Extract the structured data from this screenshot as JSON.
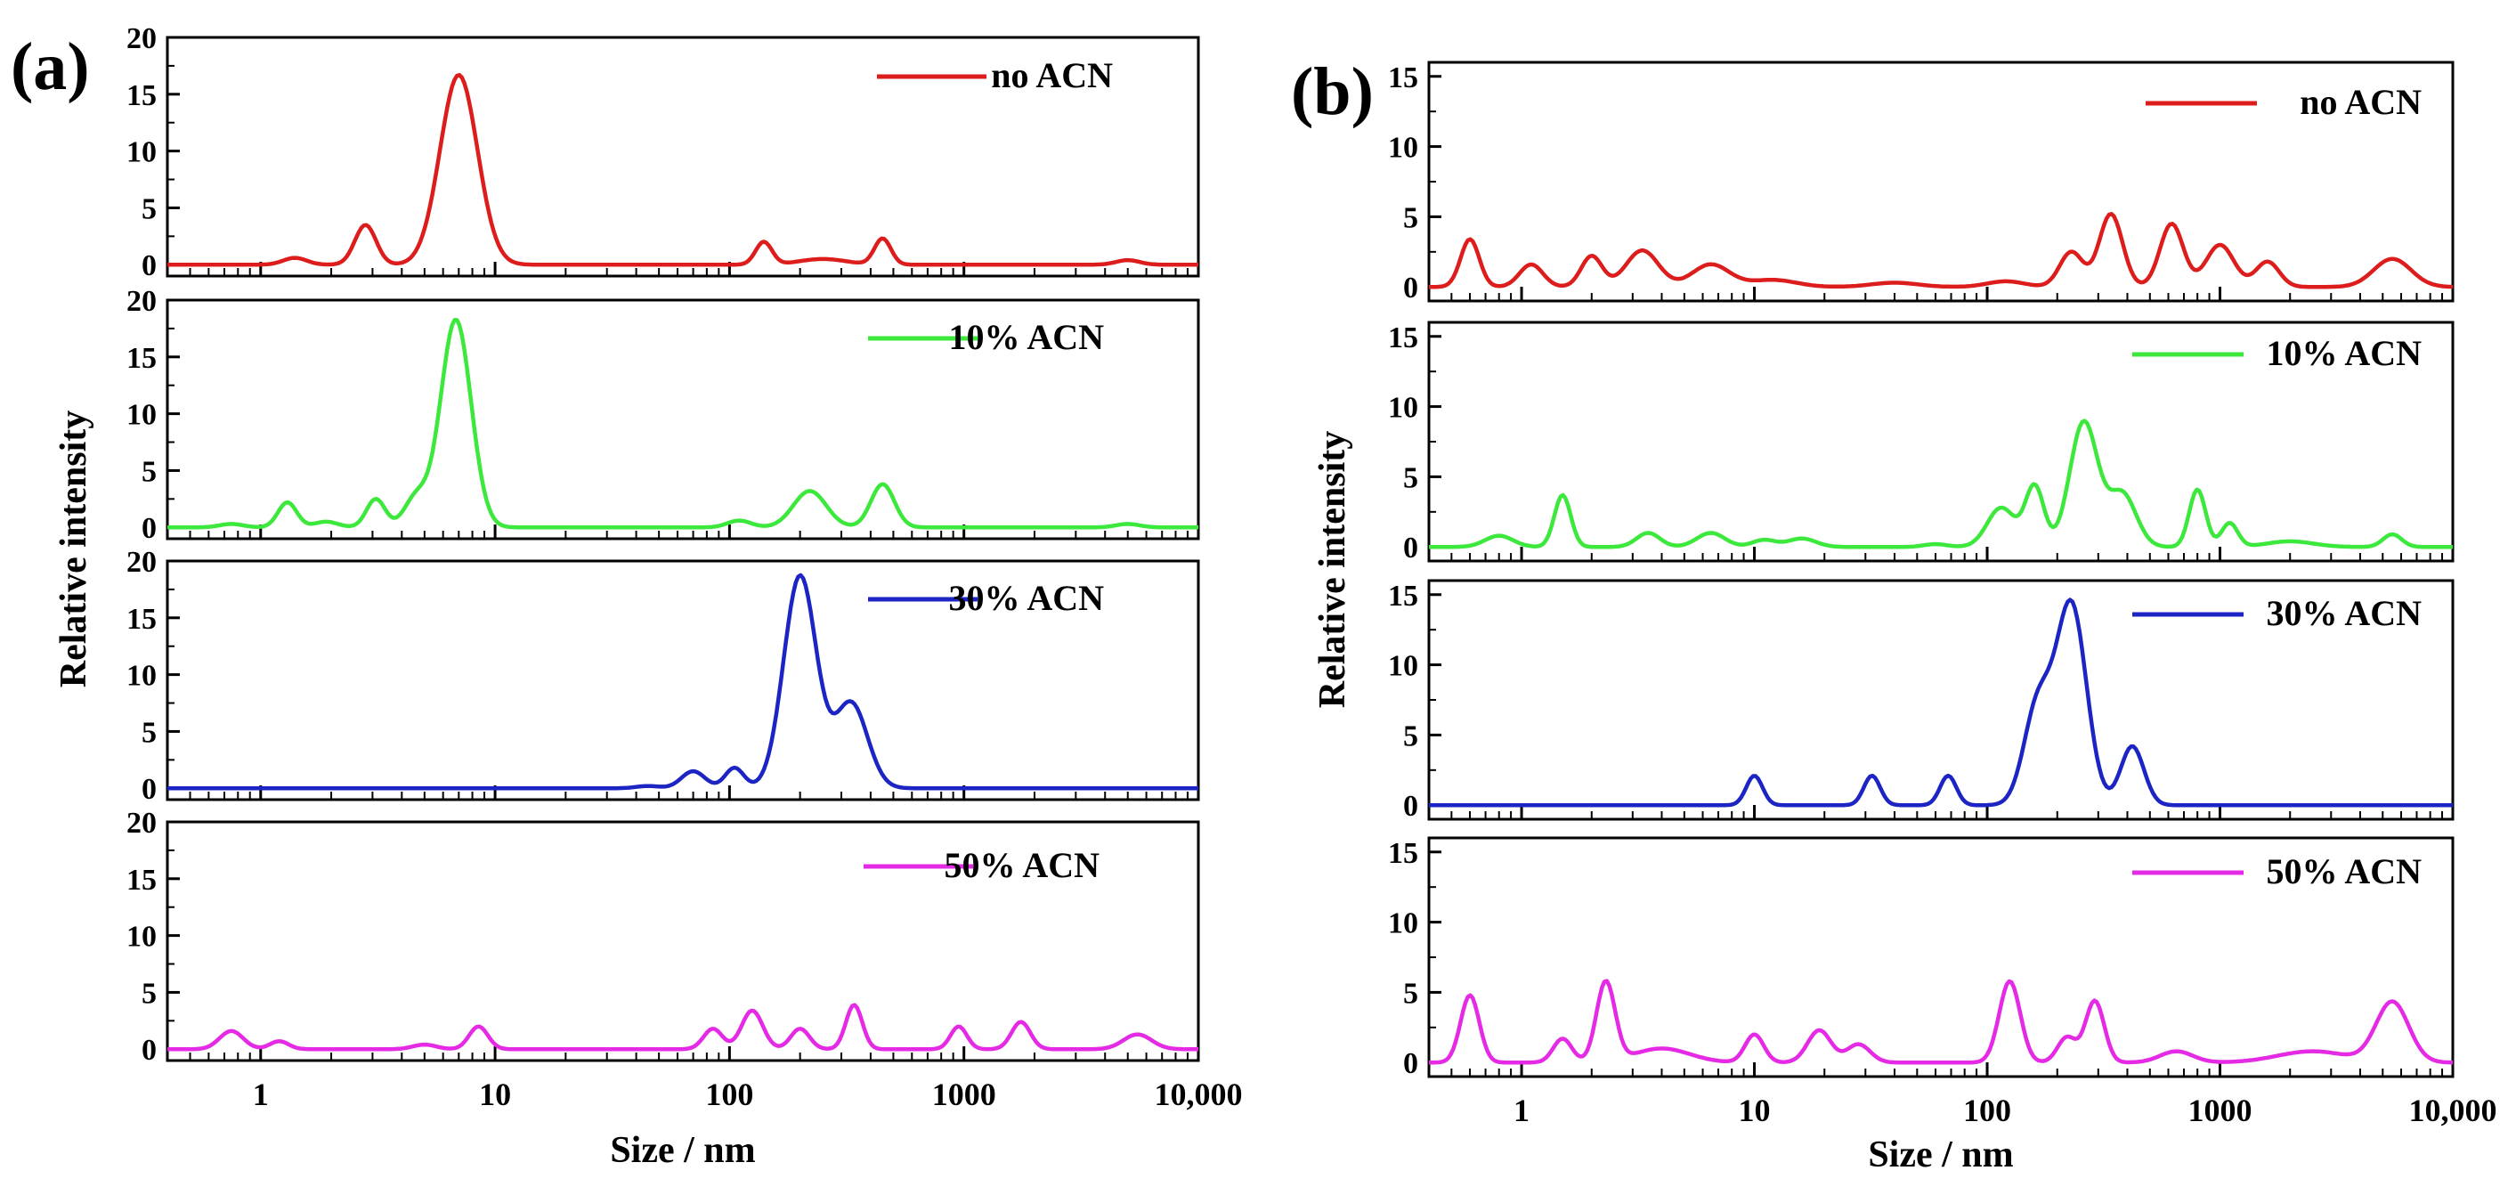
{
  "chart_data": [
    {
      "panel_label": "(a)",
      "type": "line",
      "x_scale": "log",
      "xlim": [
        0.4,
        10000
      ],
      "xlabel": "Size / nm",
      "ylabel": "Relative intensity",
      "x_ticks": [
        1,
        10,
        100,
        1000,
        10000
      ],
      "x_tick_labels": [
        "1",
        "10",
        "100",
        "1000",
        "10,000"
      ],
      "subplots": [
        {
          "legend": "no ACN",
          "color": "#dd1c1c",
          "ylim": [
            -1,
            20
          ],
          "y_ticks": [
            0,
            5,
            10,
            15,
            20
          ],
          "y_tick_labels": [
            "0",
            "5",
            "10",
            "15",
            "20"
          ],
          "peaks": [
            [
              1.4,
              0.6,
              0.05
            ],
            [
              2.8,
              3.5,
              0.045
            ],
            [
              7.0,
              16.7,
              0.08
            ],
            [
              140,
              2.0,
              0.035
            ],
            [
              250,
              0.5,
              0.1
            ],
            [
              450,
              2.3,
              0.035
            ],
            [
              5000,
              0.4,
              0.05
            ]
          ]
        },
        {
          "legend": "10% ACN",
          "color": "#3de83d",
          "ylim": [
            -1,
            20
          ],
          "y_ticks": [
            0,
            5,
            10,
            15,
            20
          ],
          "y_tick_labels": [
            "0",
            "5",
            "10",
            "15",
            "20"
          ],
          "peaks": [
            [
              0.75,
              0.3,
              0.05
            ],
            [
              1.3,
              2.2,
              0.04
            ],
            [
              1.9,
              0.5,
              0.05
            ],
            [
              3.1,
              2.5,
              0.04
            ],
            [
              4.6,
              2.6,
              0.05
            ],
            [
              6.8,
              18.3,
              0.065
            ],
            [
              110,
              0.6,
              0.05
            ],
            [
              220,
              3.2,
              0.07
            ],
            [
              450,
              3.8,
              0.05
            ],
            [
              5000,
              0.3,
              0.05
            ]
          ]
        },
        {
          "legend": "30% ACN",
          "color": "#1c24c4",
          "ylim": [
            -1,
            20
          ],
          "y_ticks": [
            0,
            5,
            10,
            15,
            20
          ],
          "y_tick_labels": [
            "0",
            "5",
            "10",
            "15",
            "20"
          ],
          "peaks": [
            [
              45,
              0.2,
              0.05
            ],
            [
              70,
              1.5,
              0.05
            ],
            [
              105,
              1.8,
              0.04
            ],
            [
              200,
              18.7,
              0.07
            ],
            [
              330,
              7.5,
              0.07
            ]
          ]
        },
        {
          "legend": "50%  ACN",
          "color": "#e52ae5",
          "ylim": [
            -1,
            20
          ],
          "y_ticks": [
            0,
            5,
            10,
            15,
            20
          ],
          "y_tick_labels": [
            "0",
            "5",
            "10",
            "15",
            "20"
          ],
          "peaks": [
            [
              0.75,
              1.6,
              0.05
            ],
            [
              1.2,
              0.7,
              0.04
            ],
            [
              5,
              0.4,
              0.05
            ],
            [
              8.5,
              2.0,
              0.04
            ],
            [
              85,
              1.8,
              0.04
            ],
            [
              125,
              3.4,
              0.045
            ],
            [
              200,
              1.8,
              0.04
            ],
            [
              340,
              3.9,
              0.035
            ],
            [
              950,
              2.0,
              0.035
            ],
            [
              1750,
              2.4,
              0.04
            ],
            [
              5500,
              1.3,
              0.06
            ]
          ]
        }
      ]
    },
    {
      "panel_label": "(b)",
      "type": "line",
      "x_scale": "log",
      "xlim": [
        0.4,
        10000
      ],
      "xlabel": "Size / nm",
      "ylabel": "Relative intensity",
      "x_ticks": [
        1,
        10,
        100,
        1000,
        10000
      ],
      "x_tick_labels": [
        "1",
        "10",
        "100",
        "1000",
        "10,000"
      ],
      "subplots": [
        {
          "legend": "no ACN",
          "color": "#dd1c1c",
          "ylim": [
            -1,
            16
          ],
          "y_ticks": [
            0,
            5,
            10,
            15
          ],
          "y_tick_labels": [
            "0",
            "5",
            "10",
            "15"
          ],
          "peaks": [
            [
              0.6,
              3.4,
              0.04
            ],
            [
              1.1,
              1.6,
              0.05
            ],
            [
              2.0,
              2.2,
              0.045
            ],
            [
              3.3,
              2.6,
              0.07
            ],
            [
              6.5,
              1.6,
              0.08
            ],
            [
              12,
              0.5,
              0.1
            ],
            [
              40,
              0.3,
              0.1
            ],
            [
              120,
              0.4,
              0.08
            ],
            [
              230,
              2.5,
              0.05
            ],
            [
              340,
              5.2,
              0.05
            ],
            [
              620,
              4.5,
              0.05
            ],
            [
              1000,
              3.0,
              0.06
            ],
            [
              1600,
              1.8,
              0.05
            ],
            [
              5500,
              2.0,
              0.08
            ]
          ]
        },
        {
          "legend": "10% ACN",
          "color": "#3de83d",
          "ylim": [
            -1,
            16
          ],
          "y_ticks": [
            0,
            5,
            10,
            15
          ],
          "y_tick_labels": [
            "0",
            "5",
            "10",
            "15"
          ],
          "peaks": [
            [
              0.8,
              0.8,
              0.06
            ],
            [
              1.5,
              3.7,
              0.035
            ],
            [
              3.5,
              1.0,
              0.05
            ],
            [
              6.5,
              1.0,
              0.06
            ],
            [
              11,
              0.5,
              0.05
            ],
            [
              16,
              0.6,
              0.06
            ],
            [
              60,
              0.2,
              0.05
            ],
            [
              115,
              2.8,
              0.06
            ],
            [
              160,
              4.3,
              0.04
            ],
            [
              260,
              8.9,
              0.06
            ],
            [
              380,
              3.8,
              0.06
            ],
            [
              800,
              4.1,
              0.035
            ],
            [
              1100,
              1.7,
              0.035
            ],
            [
              2000,
              0.4,
              0.1
            ],
            [
              5500,
              0.9,
              0.04
            ]
          ]
        },
        {
          "legend": "30% ACN",
          "color": "#1c24c4",
          "ylim": [
            -1,
            16
          ],
          "y_ticks": [
            0,
            5,
            10,
            15
          ],
          "y_tick_labels": [
            "0",
            "5",
            "10",
            "15"
          ],
          "peaks": [
            [
              10,
              2.1,
              0.035
            ],
            [
              32,
              2.1,
              0.035
            ],
            [
              68,
              2.1,
              0.035
            ],
            [
              165,
              7.0,
              0.06
            ],
            [
              230,
              14.2,
              0.065
            ],
            [
              420,
              4.2,
              0.05
            ]
          ]
        },
        {
          "legend": "50% ACN",
          "color": "#e52ae5",
          "ylim": [
            -1,
            16
          ],
          "y_ticks": [
            0,
            5,
            10,
            15
          ],
          "y_tick_labels": [
            "0",
            "5",
            "10",
            "15"
          ],
          "peaks": [
            [
              0.6,
              4.8,
              0.04
            ],
            [
              1.5,
              1.7,
              0.04
            ],
            [
              2.3,
              5.7,
              0.04
            ],
            [
              4.0,
              1.0,
              0.12
            ],
            [
              10,
              2.0,
              0.04
            ],
            [
              19,
              2.3,
              0.05
            ],
            [
              28,
              1.3,
              0.05
            ],
            [
              125,
              5.8,
              0.045
            ],
            [
              220,
              1.8,
              0.04
            ],
            [
              290,
              4.4,
              0.04
            ],
            [
              650,
              0.8,
              0.07
            ],
            [
              2500,
              0.8,
              0.15
            ],
            [
              5500,
              4.3,
              0.07
            ]
          ]
        }
      ]
    }
  ]
}
